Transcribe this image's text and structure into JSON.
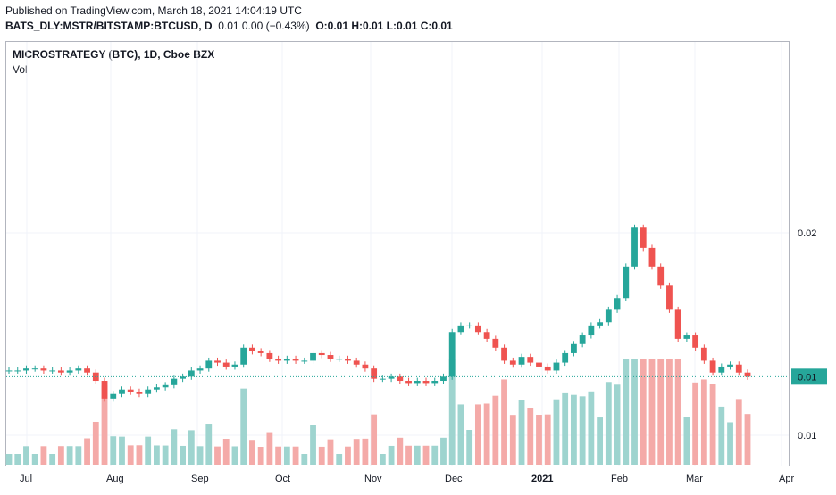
{
  "header": {
    "published": "Published on TradingView.com, March 18, 2021 14:04:19 UTC",
    "symbol": "BATS_DLY:MSTR/BITSTAMP:BTCUSD, D",
    "change": "0.01 0.00 (−0.43%)",
    "ohlc": "O:0.01 H:0.01 L:0.01 C:0.01"
  },
  "chart": {
    "title": "MICROSTRATEGY (BTC), 1D, Cboe BZX",
    "volume_label": "Vol",
    "last_price_label": "0.01",
    "colors": {
      "up": "#26a69a",
      "down": "#ef5350",
      "up_vol": "#9ed4cf",
      "down_vol": "#f4aaa8",
      "price_line": "#26a69a"
    }
  },
  "chart_data": {
    "type": "candlestick",
    "title": "MICROSTRATEGY (BTC), 1D, Cboe BZX",
    "x_ticks": [
      "Jul",
      "Aug",
      "Sep",
      "Oct",
      "Nov",
      "Dec",
      "2021",
      "Feb",
      "Mar",
      "Apr"
    ],
    "y_ticks": [
      "0.02",
      "0.01",
      "0.01"
    ],
    "last_value": 0.01,
    "scale": "log",
    "series": [
      {
        "name": "price",
        "x_range": [
          "2020-06-29",
          "2021-03-17"
        ],
        "approx_close": [
          0.0103,
          0.0103,
          0.0104,
          0.0104,
          0.0103,
          0.0103,
          0.0102,
          0.0103,
          0.0104,
          0.0102,
          0.0098,
          0.009,
          0.0092,
          0.0094,
          0.0093,
          0.0092,
          0.0094,
          0.0095,
          0.0096,
          0.0099,
          0.01,
          0.0103,
          0.0104,
          0.0108,
          0.0107,
          0.0105,
          0.0106,
          0.0115,
          0.0113,
          0.0112,
          0.0109,
          0.0108,
          0.0109,
          0.0108,
          0.0108,
          0.0112,
          0.0111,
          0.0109,
          0.0109,
          0.0108,
          0.0106,
          0.0104,
          0.0099,
          0.0099,
          0.01,
          0.0098,
          0.0097,
          0.0098,
          0.0097,
          0.0098,
          0.01,
          0.0124,
          0.0128,
          0.0128,
          0.0124,
          0.012,
          0.0115,
          0.0108,
          0.0106,
          0.011,
          0.0107,
          0.0105,
          0.0103,
          0.0107,
          0.0112,
          0.0117,
          0.0122,
          0.0128,
          0.013,
          0.0138,
          0.0146,
          0.017,
          0.0205,
          0.0186,
          0.017,
          0.0155,
          0.0138,
          0.012,
          0.0122,
          0.0115,
          0.0108,
          0.0102,
          0.0105,
          0.0106,
          0.0102,
          0.01
        ]
      }
    ]
  }
}
